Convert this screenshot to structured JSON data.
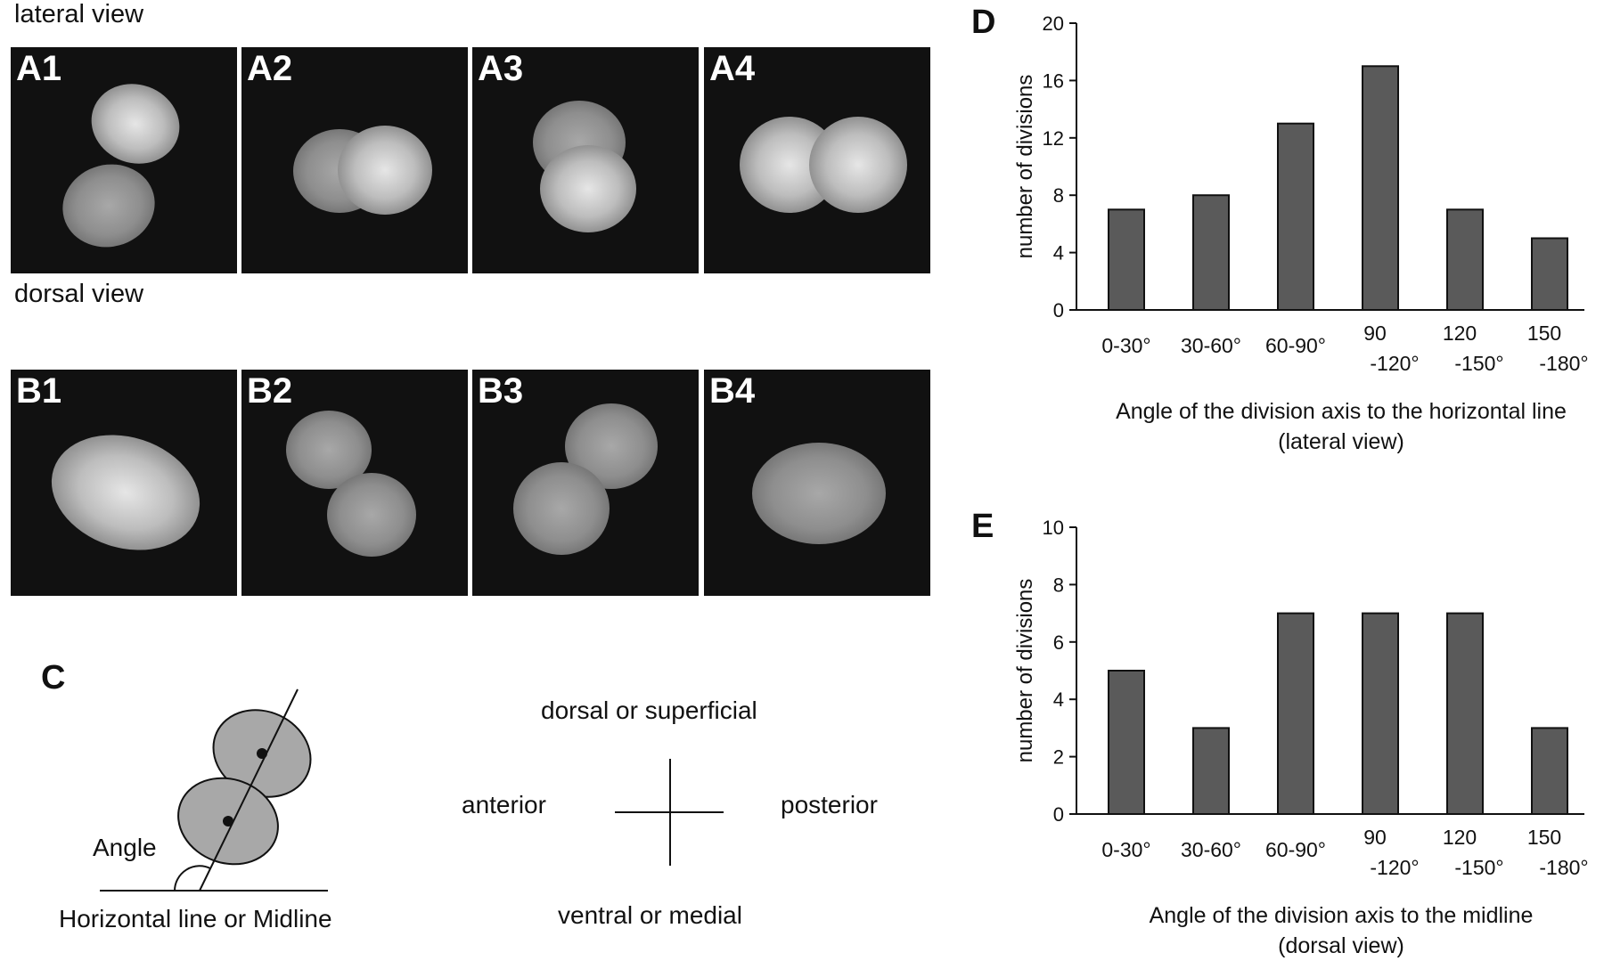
{
  "figure": {
    "lateral_label": "lateral view",
    "dorsal_label": "dorsal view",
    "panels_a": [
      "A1",
      "A2",
      "A3",
      "A4"
    ],
    "panels_b": [
      "B1",
      "B2",
      "B3",
      "B4"
    ],
    "panel_c": {
      "letter": "C",
      "angle_label": "Angle",
      "baseline_label": "Horizontal line  or  Midline",
      "top": "dorsal  or  superficial",
      "bottom": "ventral  or  medial",
      "left": "anterior",
      "right": "posterior"
    }
  },
  "chart_data": [
    {
      "letter": "D",
      "type": "bar",
      "categories": [
        [
          "0-30°"
        ],
        [
          "30-60°"
        ],
        [
          "60-90°"
        ],
        [
          "90",
          "-120°"
        ],
        [
          "120",
          "-150°"
        ],
        [
          "150",
          "-180°"
        ]
      ],
      "values": [
        7,
        8,
        13,
        17,
        7,
        5
      ],
      "ylabel": "number of divisions",
      "xlabel": [
        "Angle of the division axis to the horizontal line",
        "(lateral view)"
      ],
      "ylim": [
        0,
        20
      ],
      "yticks": [
        0,
        4,
        8,
        12,
        16,
        20
      ],
      "bar_color": "#5a5a5a"
    },
    {
      "letter": "E",
      "type": "bar",
      "categories": [
        [
          "0-30°"
        ],
        [
          "30-60°"
        ],
        [
          "60-90°"
        ],
        [
          "90",
          "-120°"
        ],
        [
          "120",
          "-150°"
        ],
        [
          "150",
          "-180°"
        ]
      ],
      "values": [
        5,
        3,
        7,
        7,
        7,
        3
      ],
      "ylabel": "number of divisions",
      "xlabel": [
        "Angle of the division axis to the midline",
        "(dorsal view)"
      ],
      "ylim": [
        0,
        10
      ],
      "yticks": [
        0,
        2,
        4,
        6,
        8,
        10
      ],
      "bar_color": "#5a5a5a"
    }
  ]
}
